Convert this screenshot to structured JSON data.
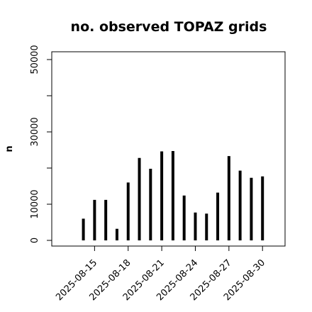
{
  "chart_data": {
    "type": "bar",
    "title": "no. observed TOPAZ grids",
    "xlabel": "",
    "ylabel": "n",
    "ylim": [
      0,
      52000
    ],
    "yticks": [
      0,
      10000,
      20000,
      30000,
      40000,
      50000
    ],
    "ytick_labels": [
      "0",
      "10000",
      "",
      "30000",
      "",
      "50000"
    ],
    "xticks": [
      {
        "x": "2025-08-15",
        "label": "2025-08-15",
        "color": "#000000"
      },
      {
        "x": "2025-08-18",
        "label": "2025-08-18",
        "color": "#000000"
      },
      {
        "x": "2025-08-21",
        "label": "2025-08-21",
        "color": "#228b22"
      },
      {
        "x": "2025-08-24",
        "label": "2025-08-24",
        "color": "#000000"
      },
      {
        "x": "2025-08-27",
        "label": "2025-08-27",
        "color": "#000000"
      },
      {
        "x": "2025-08-30",
        "label": "2025-08-30",
        "color": "#000000"
      }
    ],
    "xlim": [
      "2025-08-12",
      "2025-08-31"
    ],
    "grid": false,
    "bar_color": "#000000",
    "points": [
      {
        "x": "2025-08-14",
        "y": 6000
      },
      {
        "x": "2025-08-15",
        "y": 11200
      },
      {
        "x": "2025-08-16",
        "y": 11200
      },
      {
        "x": "2025-08-17",
        "y": 3200
      },
      {
        "x": "2025-08-18",
        "y": 16000
      },
      {
        "x": "2025-08-19",
        "y": 22800
      },
      {
        "x": "2025-08-20",
        "y": 19800
      },
      {
        "x": "2025-08-21",
        "y": 24600
      },
      {
        "x": "2025-08-22",
        "y": 24700
      },
      {
        "x": "2025-08-23",
        "y": 12400
      },
      {
        "x": "2025-08-24",
        "y": 7700
      },
      {
        "x": "2025-08-25",
        "y": 7400
      },
      {
        "x": "2025-08-26",
        "y": 13200
      },
      {
        "x": "2025-08-27",
        "y": 23300
      },
      {
        "x": "2025-08-28",
        "y": 19300
      },
      {
        "x": "2025-08-29",
        "y": 17300
      },
      {
        "x": "2025-08-30",
        "y": 17700
      }
    ]
  }
}
